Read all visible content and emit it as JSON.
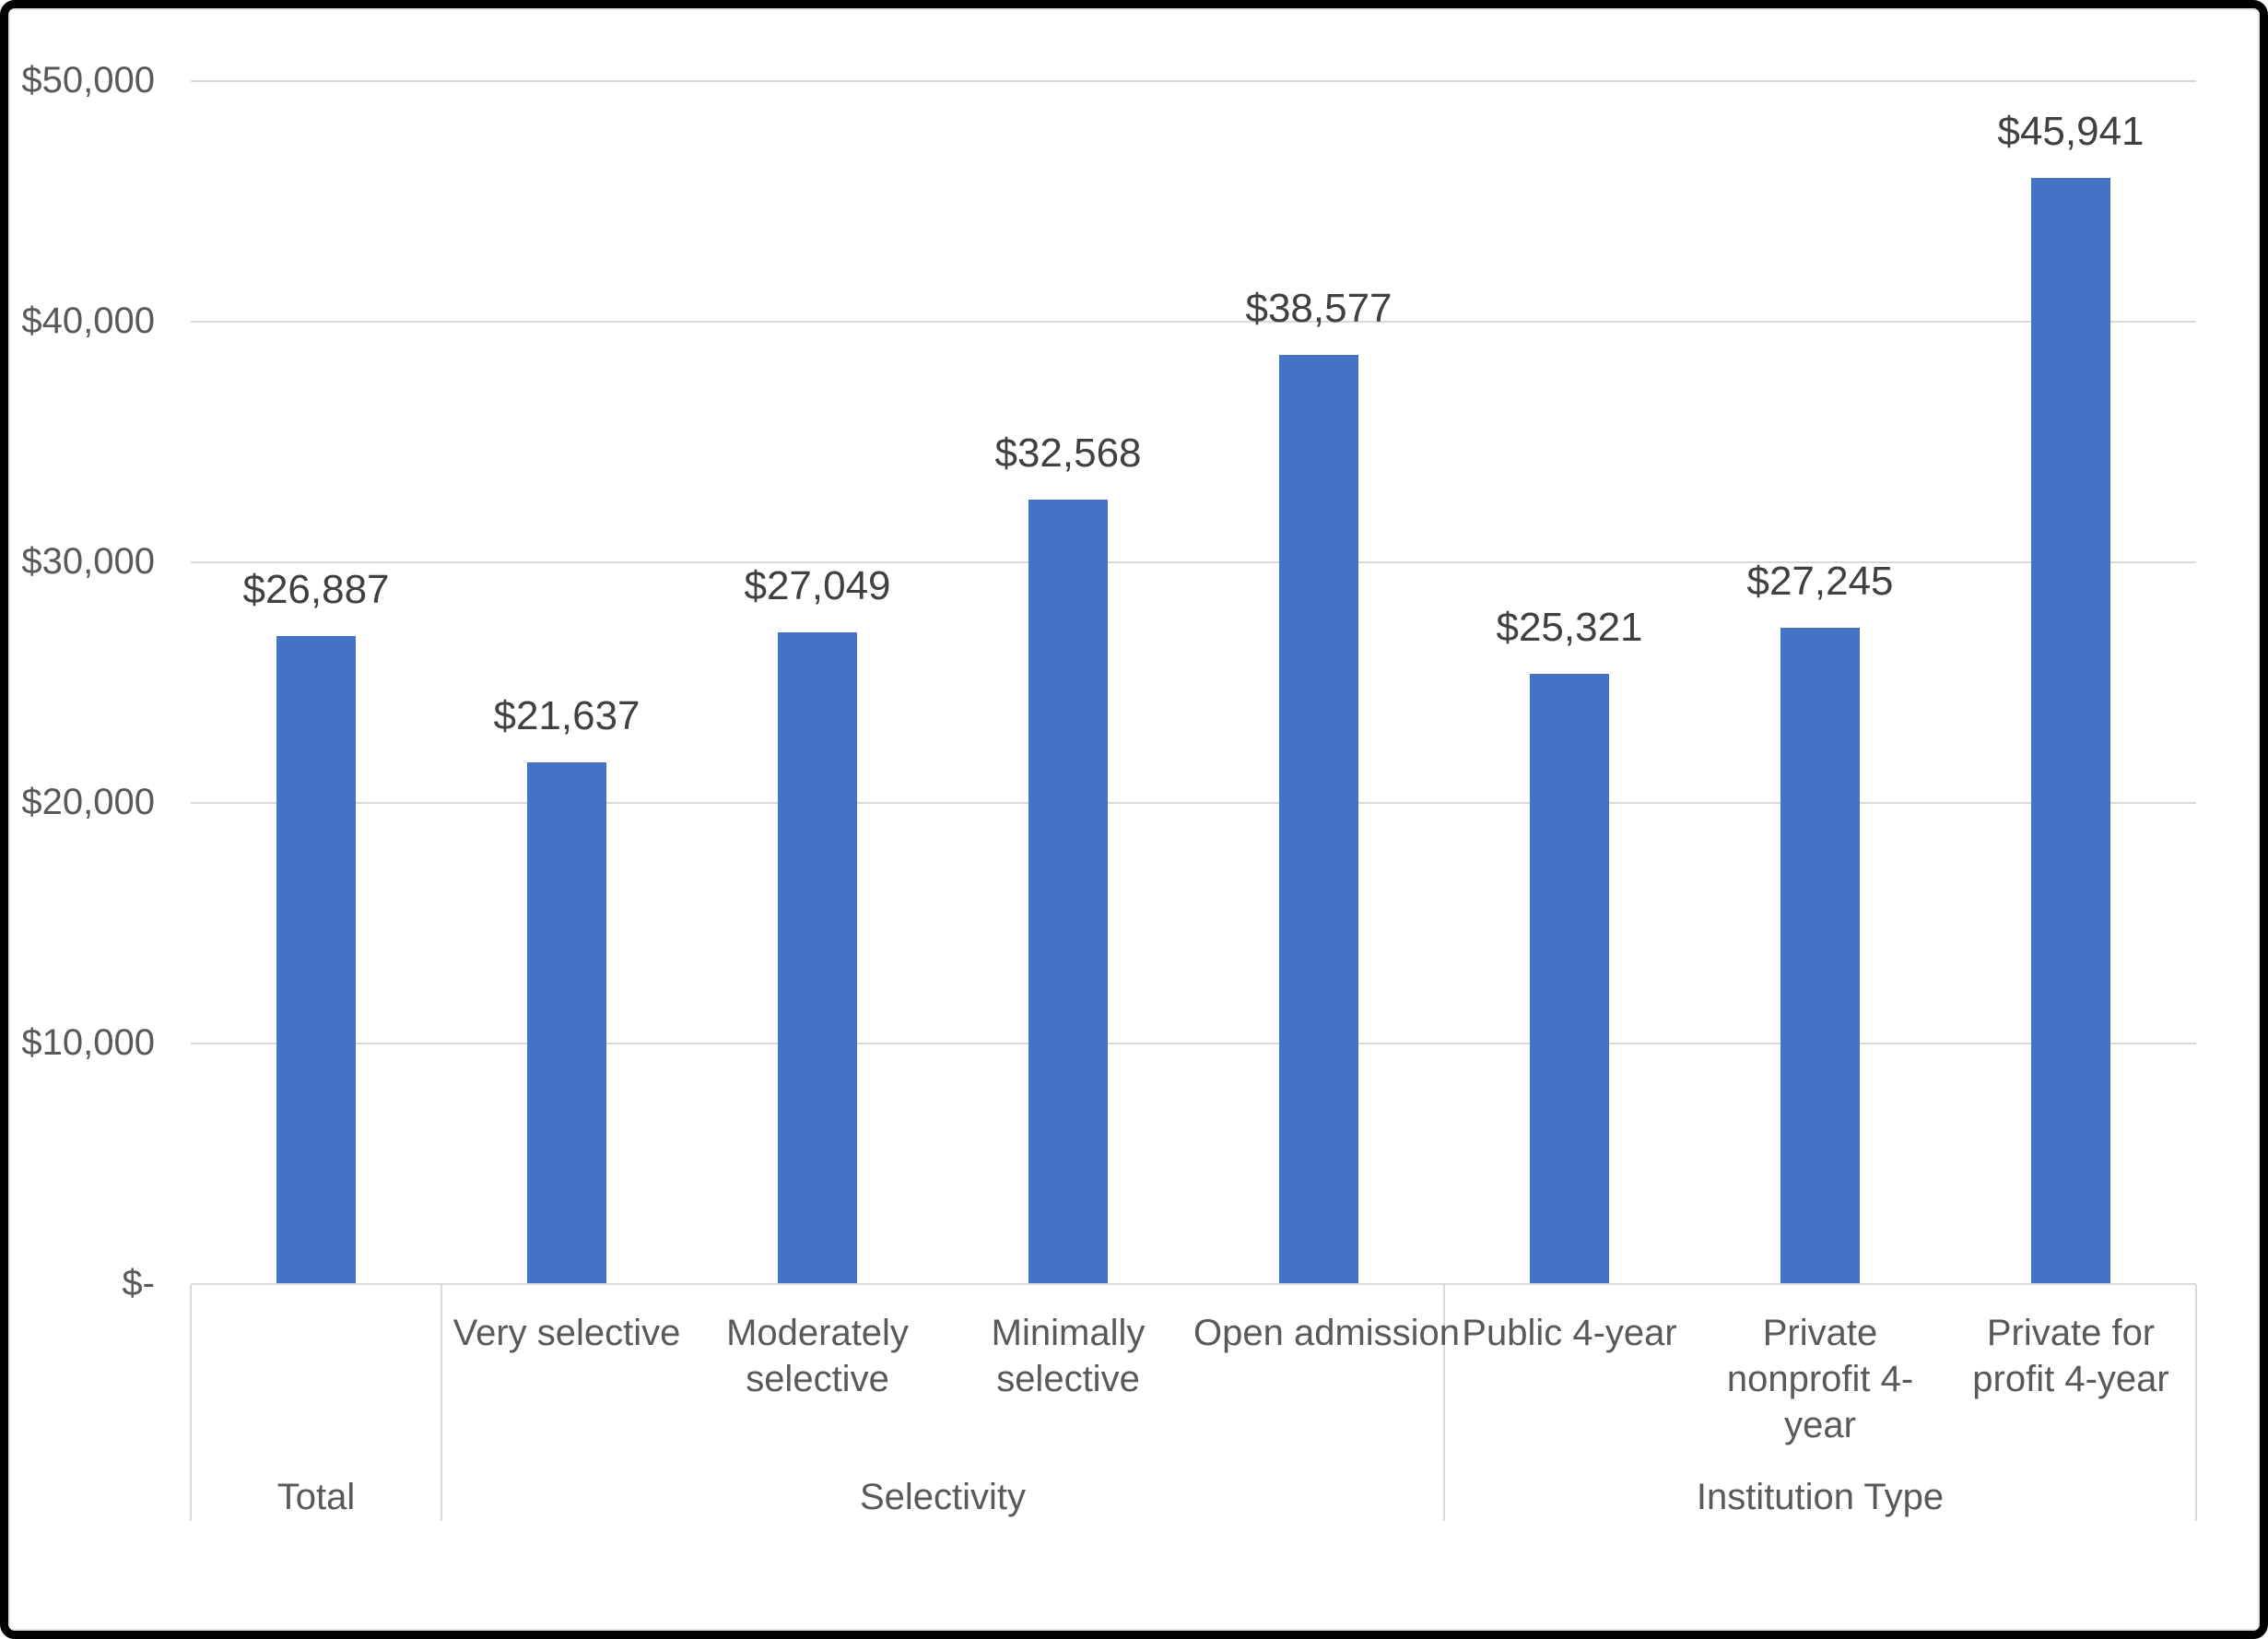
{
  "chart_data": {
    "type": "bar",
    "title": "",
    "xlabel": "",
    "ylabel": "",
    "legend": false,
    "grid": true,
    "bar_color": "#4472C4",
    "categories": [
      "Total",
      "Very selective",
      "Moderately selective",
      "Minimally selective",
      "Open admission",
      "Public 4-year",
      "Private nonprofit 4-year",
      "Private for profit 4-year"
    ],
    "category_display_lines": [
      "",
      "Very selective",
      "Moderately\nselective",
      "Minimally\nselective",
      "Open admission",
      "Public 4-year",
      "Private\nnonprofit 4-\nyear",
      "Private for\nprofit 4-year"
    ],
    "values": [
      26887,
      21637,
      27049,
      32568,
      38577,
      25321,
      27245,
      45941
    ],
    "data_labels": [
      "$26,887",
      "$21,637",
      "$27,049",
      "$32,568",
      "$38,577",
      "$25,321",
      "$27,245",
      "$45,941"
    ],
    "groups": [
      {
        "label": "Total",
        "start": 0,
        "span": 1
      },
      {
        "label": "Selectivity",
        "start": 1,
        "span": 4
      },
      {
        "label": "Institution Type",
        "start": 5,
        "span": 3
      }
    ],
    "y_axis": {
      "min": 0,
      "max": 50000,
      "step": 10000,
      "tick_labels_top_to_bottom": [
        "$50,000",
        "$40,000",
        "$30,000",
        "$20,000",
        "$10,000",
        "$-"
      ]
    },
    "colors": {
      "bar": "#4472C4",
      "gridline": "#D9D9D9",
      "axis_line": "#D9D9D9",
      "axis_text": "#595959",
      "data_label_text": "#404040"
    }
  }
}
